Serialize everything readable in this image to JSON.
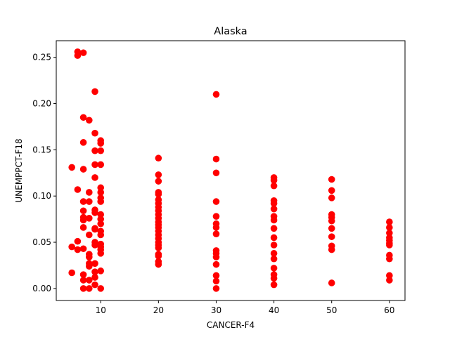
{
  "chart_data": {
    "type": "scatter",
    "title": "Alaska",
    "xlabel": "CANCER-F4",
    "ylabel": "UNEMPPCT-F18",
    "xlim": [
      2.3,
      62.7
    ],
    "ylim": [
      -0.013,
      0.268
    ],
    "xticks": [
      10,
      20,
      30,
      40,
      50,
      60
    ],
    "xtick_labels": [
      "10",
      "20",
      "30",
      "40",
      "50",
      "60"
    ],
    "yticks": [
      0.0,
      0.05,
      0.1,
      0.15,
      0.2,
      0.25
    ],
    "ytick_labels": [
      "0.00",
      "0.05",
      "0.10",
      "0.15",
      "0.20",
      "0.25"
    ],
    "grid": false,
    "color": "#ff0000",
    "points": [
      [
        5,
        0.131
      ],
      [
        5,
        0.045
      ],
      [
        5,
        0.017
      ],
      [
        6,
        0.256
      ],
      [
        6,
        0.252
      ],
      [
        6,
        0.107
      ],
      [
        6,
        0.051
      ],
      [
        6,
        0.042
      ],
      [
        7,
        0.255
      ],
      [
        7,
        0.185
      ],
      [
        7,
        0.158
      ],
      [
        7,
        0.129
      ],
      [
        7,
        0.094
      ],
      [
        7,
        0.084
      ],
      [
        7,
        0.077
      ],
      [
        7,
        0.074
      ],
      [
        7,
        0.066
      ],
      [
        7,
        0.043
      ],
      [
        7,
        0.015
      ],
      [
        7,
        0.009
      ],
      [
        7,
        0.0
      ],
      [
        8,
        0.182
      ],
      [
        8,
        0.104
      ],
      [
        8,
        0.094
      ],
      [
        8,
        0.076
      ],
      [
        8,
        0.058
      ],
      [
        8,
        0.037
      ],
      [
        8,
        0.034
      ],
      [
        8,
        0.027
      ],
      [
        8,
        0.024
      ],
      [
        8,
        0.009
      ],
      [
        8,
        0.0
      ],
      [
        9,
        0.213
      ],
      [
        9,
        0.168
      ],
      [
        9,
        0.149
      ],
      [
        9,
        0.134
      ],
      [
        9,
        0.12
      ],
      [
        9,
        0.085
      ],
      [
        9,
        0.082
      ],
      [
        9,
        0.065
      ],
      [
        9,
        0.064
      ],
      [
        9,
        0.05
      ],
      [
        9,
        0.047
      ],
      [
        9,
        0.027
      ],
      [
        9,
        0.018
      ],
      [
        9,
        0.012
      ],
      [
        9,
        0.004
      ],
      [
        10,
        0.16
      ],
      [
        10,
        0.157
      ],
      [
        10,
        0.149
      ],
      [
        10,
        0.134
      ],
      [
        10,
        0.109
      ],
      [
        10,
        0.104
      ],
      [
        10,
        0.098
      ],
      [
        10,
        0.094
      ],
      [
        10,
        0.08
      ],
      [
        10,
        0.075
      ],
      [
        10,
        0.07
      ],
      [
        10,
        0.062
      ],
      [
        10,
        0.058
      ],
      [
        10,
        0.048
      ],
      [
        10,
        0.045
      ],
      [
        10,
        0.042
      ],
      [
        10,
        0.038
      ],
      [
        10,
        0.019
      ],
      [
        10,
        0.0
      ],
      [
        20,
        0.141
      ],
      [
        20,
        0.123
      ],
      [
        20,
        0.116
      ],
      [
        20,
        0.104
      ],
      [
        20,
        0.102
      ],
      [
        20,
        0.096
      ],
      [
        20,
        0.092
      ],
      [
        20,
        0.088
      ],
      [
        20,
        0.084
      ],
      [
        20,
        0.08
      ],
      [
        20,
        0.076
      ],
      [
        20,
        0.072
      ],
      [
        20,
        0.069
      ],
      [
        20,
        0.066
      ],
      [
        20,
        0.062
      ],
      [
        20,
        0.058
      ],
      [
        20,
        0.054
      ],
      [
        20,
        0.05
      ],
      [
        20,
        0.047
      ],
      [
        20,
        0.044
      ],
      [
        20,
        0.037
      ],
      [
        20,
        0.035
      ],
      [
        20,
        0.029
      ],
      [
        20,
        0.026
      ],
      [
        30,
        0.21
      ],
      [
        30,
        0.14
      ],
      [
        30,
        0.125
      ],
      [
        30,
        0.094
      ],
      [
        30,
        0.078
      ],
      [
        30,
        0.07
      ],
      [
        30,
        0.066
      ],
      [
        30,
        0.059
      ],
      [
        30,
        0.041
      ],
      [
        30,
        0.038
      ],
      [
        30,
        0.034
      ],
      [
        30,
        0.026
      ],
      [
        30,
        0.014
      ],
      [
        30,
        0.008
      ],
      [
        30,
        0.0
      ],
      [
        40,
        0.12
      ],
      [
        40,
        0.117
      ],
      [
        40,
        0.111
      ],
      [
        40,
        0.095
      ],
      [
        40,
        0.092
      ],
      [
        40,
        0.086
      ],
      [
        40,
        0.078
      ],
      [
        40,
        0.074
      ],
      [
        40,
        0.065
      ],
      [
        40,
        0.055
      ],
      [
        40,
        0.047
      ],
      [
        40,
        0.038
      ],
      [
        40,
        0.032
      ],
      [
        40,
        0.022
      ],
      [
        40,
        0.015
      ],
      [
        40,
        0.011
      ],
      [
        40,
        0.004
      ],
      [
        50,
        0.118
      ],
      [
        50,
        0.106
      ],
      [
        50,
        0.098
      ],
      [
        50,
        0.08
      ],
      [
        50,
        0.077
      ],
      [
        50,
        0.073
      ],
      [
        50,
        0.065
      ],
      [
        50,
        0.056
      ],
      [
        50,
        0.046
      ],
      [
        50,
        0.042
      ],
      [
        50,
        0.006
      ],
      [
        60,
        0.072
      ],
      [
        60,
        0.066
      ],
      [
        60,
        0.06
      ],
      [
        60,
        0.055
      ],
      [
        60,
        0.052
      ],
      [
        60,
        0.049
      ],
      [
        60,
        0.047
      ],
      [
        60,
        0.036
      ],
      [
        60,
        0.032
      ],
      [
        60,
        0.014
      ],
      [
        60,
        0.009
      ]
    ]
  }
}
